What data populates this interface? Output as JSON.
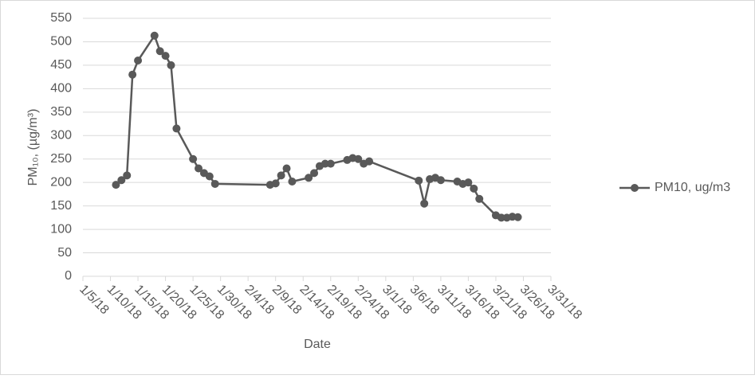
{
  "chart_data": {
    "type": "line",
    "x_label": "Date",
    "y_label": "PM₁₀, (µg/m³)",
    "x": [
      "1/11/18",
      "1/12/18",
      "1/13/18",
      "1/14/18",
      "1/15/18",
      "1/18/18",
      "1/19/18",
      "1/20/18",
      "1/21/18",
      "1/22/18",
      "1/25/18",
      "1/26/18",
      "1/27/18",
      "1/28/18",
      "1/29/18",
      "2/8/18",
      "2/9/18",
      "2/10/18",
      "2/11/18",
      "2/12/18",
      "2/15/18",
      "2/16/18",
      "2/17/18",
      "2/18/18",
      "2/19/18",
      "2/22/18",
      "2/23/18",
      "2/24/18",
      "2/25/18",
      "2/26/18",
      "3/7/18",
      "3/8/18",
      "3/9/18",
      "3/10/18",
      "3/11/18",
      "3/14/18",
      "3/15/18",
      "3/16/18",
      "3/17/18",
      "3/18/18",
      "3/21/18",
      "3/22/18",
      "3/23/18",
      "3/24/18",
      "3/25/18"
    ],
    "series": [
      {
        "name": "PM10, ug/m3",
        "color": "#595959",
        "values": [
          195,
          205,
          215,
          430,
          460,
          513,
          480,
          470,
          450,
          315,
          250,
          230,
          220,
          213,
          197,
          195,
          198,
          215,
          230,
          202,
          210,
          220,
          235,
          240,
          240,
          248,
          252,
          250,
          240,
          245,
          204,
          155,
          207,
          210,
          205,
          202,
          197,
          200,
          187,
          165,
          130,
          125,
          125,
          127,
          126
        ]
      }
    ],
    "xlim": [
      "1/5/18",
      "3/31/18"
    ],
    "xticks": [
      "1/5/18",
      "1/10/18",
      "1/15/18",
      "1/20/18",
      "1/25/18",
      "1/30/18",
      "2/4/18",
      "2/9/18",
      "2/14/18",
      "2/19/18",
      "2/24/18",
      "3/1/18",
      "3/6/18",
      "3/11/18",
      "3/16/18",
      "3/21/18",
      "3/26/18",
      "3/31/18"
    ],
    "ylim": [
      0,
      550
    ],
    "yticks": [
      0,
      50,
      100,
      150,
      200,
      250,
      300,
      350,
      400,
      450,
      500,
      550
    ],
    "grid": true,
    "legend": "right"
  }
}
